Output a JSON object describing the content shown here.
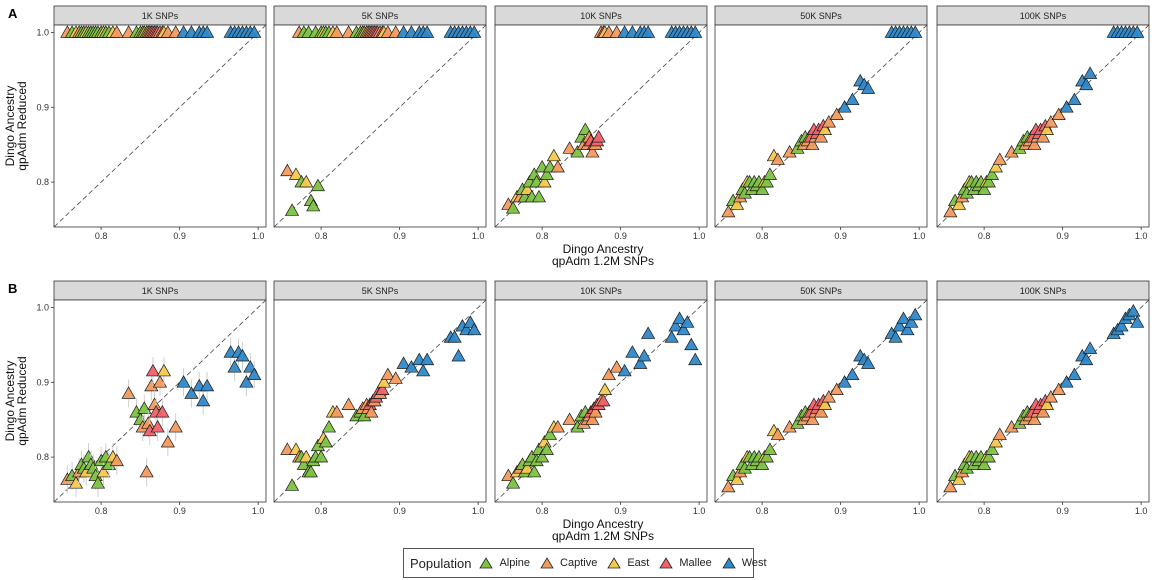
{
  "figure": {
    "rows": [
      {
        "tag": "A",
        "xlabel": [
          "Dingo Ancestry",
          "qpAdm 1.2M SNPs"
        ],
        "ylabel": [
          "Dingo Ancestry",
          "qpAdm Reduced"
        ]
      },
      {
        "tag": "B",
        "xlabel": [
          "Dingo Ancestry",
          "qpAdm 1.2M SNPs"
        ],
        "ylabel": [
          "Dingo Ancestry",
          "qpAdm Reduced"
        ]
      }
    ],
    "panel_titles": [
      "1K SNPs",
      "5K SNPs",
      "10K SNPs",
      "50K SNPs",
      "100K SNPs"
    ],
    "x_ticks": [
      "0.8",
      "0.9",
      "1.0"
    ],
    "y_ticks": [
      "0.8",
      "0.9",
      "1.0"
    ]
  },
  "legend": {
    "title": "Population",
    "items": [
      {
        "label": "Alpine",
        "color": "#7DC242"
      },
      {
        "label": "Captive",
        "color": "#F39A5E"
      },
      {
        "label": "East",
        "color": "#F7C84E"
      },
      {
        "label": "Mallee",
        "color": "#F0626A"
      },
      {
        "label": "West",
        "color": "#2F88C8"
      }
    ]
  },
  "chart_data": {
    "type": "scatter",
    "description_free": true,
    "xlim": [
      0.74,
      1.01
    ],
    "ylim": [
      0.74,
      1.01
    ],
    "reference_line": "y = x (dashed)",
    "grid": false,
    "legend_position": "bottom",
    "x": [
      0.757,
      0.763,
      0.768,
      0.772,
      0.775,
      0.778,
      0.781,
      0.784,
      0.787,
      0.79,
      0.793,
      0.796,
      0.8,
      0.803,
      0.806,
      0.81,
      0.815,
      0.82,
      0.835,
      0.845,
      0.85,
      0.853,
      0.855,
      0.858,
      0.86,
      0.862,
      0.864,
      0.866,
      0.868,
      0.87,
      0.872,
      0.875,
      0.878,
      0.88,
      0.885,
      0.895,
      0.905,
      0.915,
      0.925,
      0.93,
      0.935,
      0.965,
      0.97,
      0.975,
      0.98,
      0.985,
      0.99,
      0.995
    ],
    "pop": [
      "C",
      "A",
      "E",
      "C",
      "A",
      "A",
      "E",
      "A",
      "A",
      "A",
      "A",
      "A",
      "A",
      "E",
      "A",
      "A",
      "E",
      "C",
      "C",
      "A",
      "A",
      "C",
      "A",
      "C",
      "C",
      "M",
      "C",
      "M",
      "C",
      "M",
      "M",
      "C",
      "M",
      "E",
      "C",
      "C",
      "W",
      "W",
      "W",
      "W",
      "W",
      "W",
      "W",
      "W",
      "W",
      "W",
      "W",
      "W"
    ],
    "series": [
      {
        "row": "A",
        "panel": "1K SNPs",
        "y": [
          1.0,
          1.0,
          1.0,
          1.0,
          1.0,
          1.0,
          1.0,
          1.0,
          1.0,
          1.0,
          1.0,
          1.0,
          1.0,
          1.0,
          1.0,
          1.0,
          1.0,
          1.0,
          1.0,
          1.0,
          1.0,
          1.0,
          1.0,
          1.0,
          1.0,
          1.0,
          1.0,
          1.0,
          1.0,
          1.0,
          1.0,
          1.0,
          1.0,
          1.0,
          1.0,
          1.0,
          1.0,
          1.0,
          1.0,
          1.0,
          1.0,
          1.0,
          1.0,
          1.0,
          1.0,
          1.0,
          1.0,
          1.0
        ]
      },
      {
        "row": "A",
        "panel": "5K SNPs",
        "y": [
          0.815,
          0.762,
          0.81,
          1.0,
          0.8,
          1.0,
          0.8,
          1.0,
          0.775,
          0.768,
          1.0,
          0.795,
          1.0,
          1.0,
          1.0,
          1.0,
          1.0,
          1.0,
          1.0,
          1.0,
          1.0,
          1.0,
          1.0,
          1.0,
          1.0,
          1.0,
          1.0,
          1.0,
          1.0,
          1.0,
          1.0,
          1.0,
          1.0,
          1.0,
          1.0,
          1.0,
          1.0,
          1.0,
          1.0,
          1.0,
          1.0,
          1.0,
          1.0,
          1.0,
          1.0,
          1.0,
          1.0,
          1.0
        ]
      },
      {
        "row": "A",
        "panel": "10K SNPs",
        "y": [
          0.77,
          0.765,
          0.78,
          0.78,
          0.79,
          0.78,
          0.79,
          0.8,
          0.78,
          0.81,
          0.8,
          0.78,
          0.82,
          0.8,
          0.81,
          0.82,
          0.835,
          0.82,
          0.845,
          0.84,
          0.86,
          0.85,
          0.87,
          0.85,
          0.86,
          0.855,
          0.84,
          0.85,
          0.85,
          0.855,
          0.86,
          1.0,
          1.0,
          1.0,
          1.0,
          1.0,
          1.0,
          1.0,
          1.0,
          1.0,
          1.0,
          1.0,
          1.0,
          1.0,
          1.0,
          1.0,
          1.0,
          1.0
        ]
      },
      {
        "row": "A",
        "panel": "50K SNPs",
        "y": [
          0.76,
          0.775,
          0.77,
          0.78,
          0.79,
          0.785,
          0.8,
          0.8,
          0.79,
          0.8,
          0.795,
          0.8,
          0.79,
          0.8,
          0.8,
          0.81,
          0.835,
          0.83,
          0.84,
          0.845,
          0.855,
          0.85,
          0.86,
          0.855,
          0.86,
          0.86,
          0.85,
          0.87,
          0.86,
          0.865,
          0.87,
          0.86,
          0.875,
          0.87,
          0.88,
          0.89,
          0.9,
          0.91,
          0.935,
          0.93,
          0.925,
          1.0,
          1.0,
          1.0,
          1.0,
          1.0,
          1.0,
          1.0
        ]
      },
      {
        "row": "A",
        "panel": "100K SNPs",
        "y": [
          0.76,
          0.775,
          0.77,
          0.78,
          0.79,
          0.785,
          0.8,
          0.8,
          0.79,
          0.8,
          0.795,
          0.8,
          0.79,
          0.8,
          0.8,
          0.81,
          0.82,
          0.83,
          0.84,
          0.845,
          0.855,
          0.85,
          0.86,
          0.855,
          0.86,
          0.86,
          0.85,
          0.87,
          0.86,
          0.865,
          0.87,
          0.86,
          0.875,
          0.87,
          0.88,
          0.89,
          0.9,
          0.91,
          0.935,
          0.93,
          0.945,
          1.0,
          1.0,
          1.0,
          1.0,
          1.0,
          1.0,
          1.0
        ]
      },
      {
        "row": "B",
        "panel": "1K SNPs",
        "y": [
          0.77,
          0.775,
          0.765,
          0.78,
          0.79,
          0.785,
          0.78,
          0.8,
          0.79,
          0.785,
          0.775,
          0.765,
          0.795,
          0.78,
          0.8,
          0.79,
          0.8,
          0.795,
          0.885,
          0.86,
          0.85,
          0.84,
          0.865,
          0.78,
          0.845,
          0.835,
          0.895,
          0.915,
          0.87,
          0.86,
          0.84,
          0.9,
          0.86,
          0.915,
          0.82,
          0.84,
          0.9,
          0.885,
          0.895,
          0.875,
          0.895,
          0.94,
          0.92,
          0.94,
          0.935,
          0.9,
          0.92,
          0.91
        ]
      },
      {
        "row": "B",
        "panel": "5K SNPs",
        "y": [
          0.81,
          0.762,
          0.81,
          0.8,
          0.8,
          0.79,
          0.8,
          0.78,
          0.78,
          0.795,
          0.8,
          0.815,
          0.8,
          0.825,
          0.82,
          0.84,
          0.86,
          0.86,
          0.87,
          0.855,
          0.86,
          0.865,
          0.855,
          0.87,
          0.865,
          0.87,
          0.86,
          0.875,
          0.875,
          0.88,
          0.885,
          0.885,
          0.89,
          0.9,
          0.91,
          0.905,
          0.925,
          0.92,
          0.93,
          0.915,
          0.93,
          0.96,
          0.96,
          0.935,
          0.975,
          0.97,
          0.98,
          0.97
        ]
      },
      {
        "row": "B",
        "panel": "10K SNPs",
        "y": [
          0.775,
          0.765,
          0.78,
          0.785,
          0.79,
          0.78,
          0.785,
          0.795,
          0.8,
          0.78,
          0.795,
          0.81,
          0.8,
          0.82,
          0.81,
          0.83,
          0.84,
          0.84,
          0.85,
          0.84,
          0.855,
          0.845,
          0.86,
          0.85,
          0.855,
          0.86,
          0.85,
          0.865,
          0.86,
          0.87,
          0.87,
          0.875,
          0.875,
          0.89,
          0.91,
          0.92,
          0.915,
          0.94,
          0.925,
          0.935,
          0.965,
          0.96,
          0.975,
          0.985,
          0.97,
          0.98,
          0.95,
          0.93
        ]
      },
      {
        "row": "B",
        "panel": "50K SNPs",
        "y": [
          0.76,
          0.775,
          0.77,
          0.78,
          0.79,
          0.785,
          0.8,
          0.8,
          0.79,
          0.8,
          0.795,
          0.8,
          0.79,
          0.8,
          0.8,
          0.81,
          0.835,
          0.83,
          0.84,
          0.845,
          0.855,
          0.85,
          0.86,
          0.855,
          0.86,
          0.86,
          0.85,
          0.87,
          0.86,
          0.865,
          0.87,
          0.86,
          0.875,
          0.87,
          0.88,
          0.89,
          0.9,
          0.91,
          0.935,
          0.93,
          0.925,
          0.965,
          0.96,
          0.975,
          0.985,
          0.97,
          0.98,
          0.99
        ]
      },
      {
        "row": "B",
        "panel": "100K SNPs",
        "y": [
          0.76,
          0.775,
          0.77,
          0.78,
          0.79,
          0.785,
          0.8,
          0.8,
          0.79,
          0.8,
          0.795,
          0.8,
          0.79,
          0.8,
          0.8,
          0.81,
          0.82,
          0.83,
          0.84,
          0.845,
          0.855,
          0.85,
          0.86,
          0.855,
          0.86,
          0.86,
          0.85,
          0.87,
          0.86,
          0.865,
          0.87,
          0.86,
          0.875,
          0.87,
          0.88,
          0.89,
          0.9,
          0.91,
          0.935,
          0.93,
          0.945,
          0.965,
          0.97,
          0.975,
          0.985,
          0.99,
          0.995,
          0.98
        ]
      }
    ]
  }
}
